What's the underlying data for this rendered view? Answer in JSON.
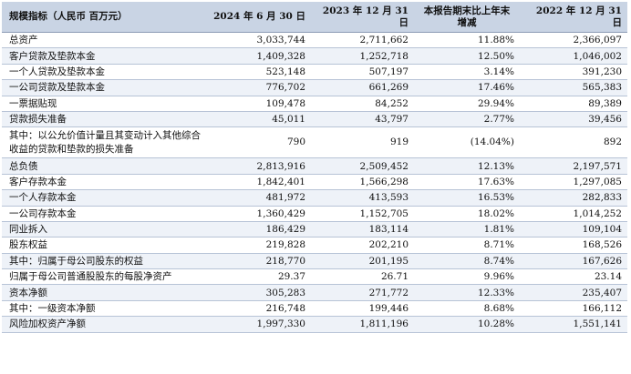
{
  "header": {
    "col0": "规模指标（人民币 百万元）",
    "col1": "2024 年 6 月 30 日",
    "col2": "2023 年 12 月 31 日",
    "col3": "本报告期末比上年末增减",
    "col4": "2022 年 12 月 31 日"
  },
  "rows": [
    {
      "label": "总资产",
      "v1": "3,033,744",
      "v2": "2,711,662",
      "v3": "11.88%",
      "v4": "2,366,097"
    },
    {
      "label": "客户贷款及垫款本金",
      "v1": "1,409,328",
      "v2": "1,252,718",
      "v3": "12.50%",
      "v4": "1,046,002"
    },
    {
      "label": "一个人贷款及垫款本金",
      "v1": "523,148",
      "v2": "507,197",
      "v3": "3.14%",
      "v4": "391,230"
    },
    {
      "label": "一公司贷款及垫款本金",
      "v1": "776,702",
      "v2": "661,269",
      "v3": "17.46%",
      "v4": "565,383"
    },
    {
      "label": "一票据贴现",
      "v1": "109,478",
      "v2": "84,252",
      "v3": "29.94%",
      "v4": "89,389"
    },
    {
      "label": "贷款损失准备",
      "v1": "45,011",
      "v2": "43,797",
      "v3": "2.77%",
      "v4": "39,456"
    },
    {
      "label": "其中：以公允价值计量且其变动计入其他综合收益的贷款和垫款的损失准备",
      "v1": "790",
      "v2": "919",
      "v3": "(14.04%)",
      "v4": "892"
    },
    {
      "label": "总负债",
      "v1": "2,813,916",
      "v2": "2,509,452",
      "v3": "12.13%",
      "v4": "2,197,571"
    },
    {
      "label": "客户存款本金",
      "v1": "1,842,401",
      "v2": "1,566,298",
      "v3": "17.63%",
      "v4": "1,297,085"
    },
    {
      "label": "一个人存款本金",
      "v1": "481,972",
      "v2": "413,593",
      "v3": "16.53%",
      "v4": "282,833"
    },
    {
      "label": "一公司存款本金",
      "v1": "1,360,429",
      "v2": "1,152,705",
      "v3": "18.02%",
      "v4": "1,014,252"
    },
    {
      "label": "同业拆入",
      "v1": "186,429",
      "v2": "183,114",
      "v3": "1.81%",
      "v4": "109,104"
    },
    {
      "label": "股东权益",
      "v1": "219,828",
      "v2": "202,210",
      "v3": "8.71%",
      "v4": "168,526"
    },
    {
      "label": "其中：归属于母公司股东的权益",
      "v1": "218,770",
      "v2": "201,195",
      "v3": "8.74%",
      "v4": "167,626"
    },
    {
      "label": "归属于母公司普通股股东的每股净资产",
      "v1": "29.37",
      "v2": "26.71",
      "v3": "9.96%",
      "v4": "23.14"
    },
    {
      "label": "资本净额",
      "v1": "305,283",
      "v2": "271,772",
      "v3": "12.33%",
      "v4": "235,407"
    },
    {
      "label": "其中：一级资本净额",
      "v1": "216,748",
      "v2": "199,446",
      "v3": "8.68%",
      "v4": "166,112"
    },
    {
      "label": "风险加权资产净额",
      "v1": "1,997,330",
      "v2": "1,811,196",
      "v3": "10.28%",
      "v4": "1,551,141"
    }
  ]
}
